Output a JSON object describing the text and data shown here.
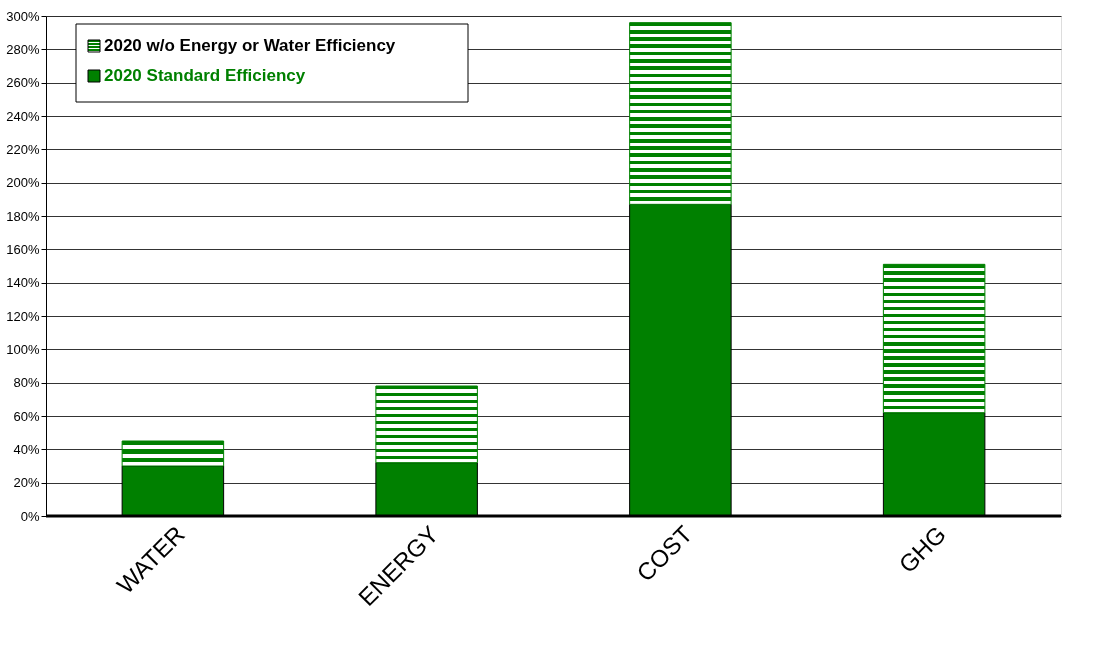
{
  "chart_data": {
    "type": "bar",
    "stacked": true,
    "categories": [
      "WATER",
      "ENERGY",
      "COST",
      "GHG"
    ],
    "series": [
      {
        "name": "2020 Standard Efficiency",
        "color": "#008000",
        "values": [
          30,
          32,
          187,
          62
        ]
      },
      {
        "name": "2020 w/o Energy or Water Efficiency",
        "color": "#008000",
        "values": [
          15,
          46,
          109,
          89
        ]
      }
    ],
    "ylim": [
      0,
      300
    ],
    "yticks": [
      {
        "value": 0,
        "label": "0%"
      },
      {
        "value": 20,
        "label": "20%"
      },
      {
        "value": 40,
        "label": "40%"
      },
      {
        "value": 60,
        "label": "60%"
      },
      {
        "value": 80,
        "label": "80%"
      },
      {
        "value": 100,
        "label": "100%"
      },
      {
        "value": 120,
        "label": "120%"
      },
      {
        "value": 140,
        "label": "140%"
      },
      {
        "value": 160,
        "label": "160%"
      },
      {
        "value": 180,
        "label": "180%"
      },
      {
        "value": 200,
        "label": "200%"
      },
      {
        "value": 220,
        "label": "220%"
      },
      {
        "value": 240,
        "label": "240%"
      },
      {
        "value": 260,
        "label": "260%"
      },
      {
        "value": 280,
        "label": "280%"
      },
      {
        "value": 300,
        "label": "300%"
      }
    ],
    "grid": "y",
    "legend": "top left"
  }
}
